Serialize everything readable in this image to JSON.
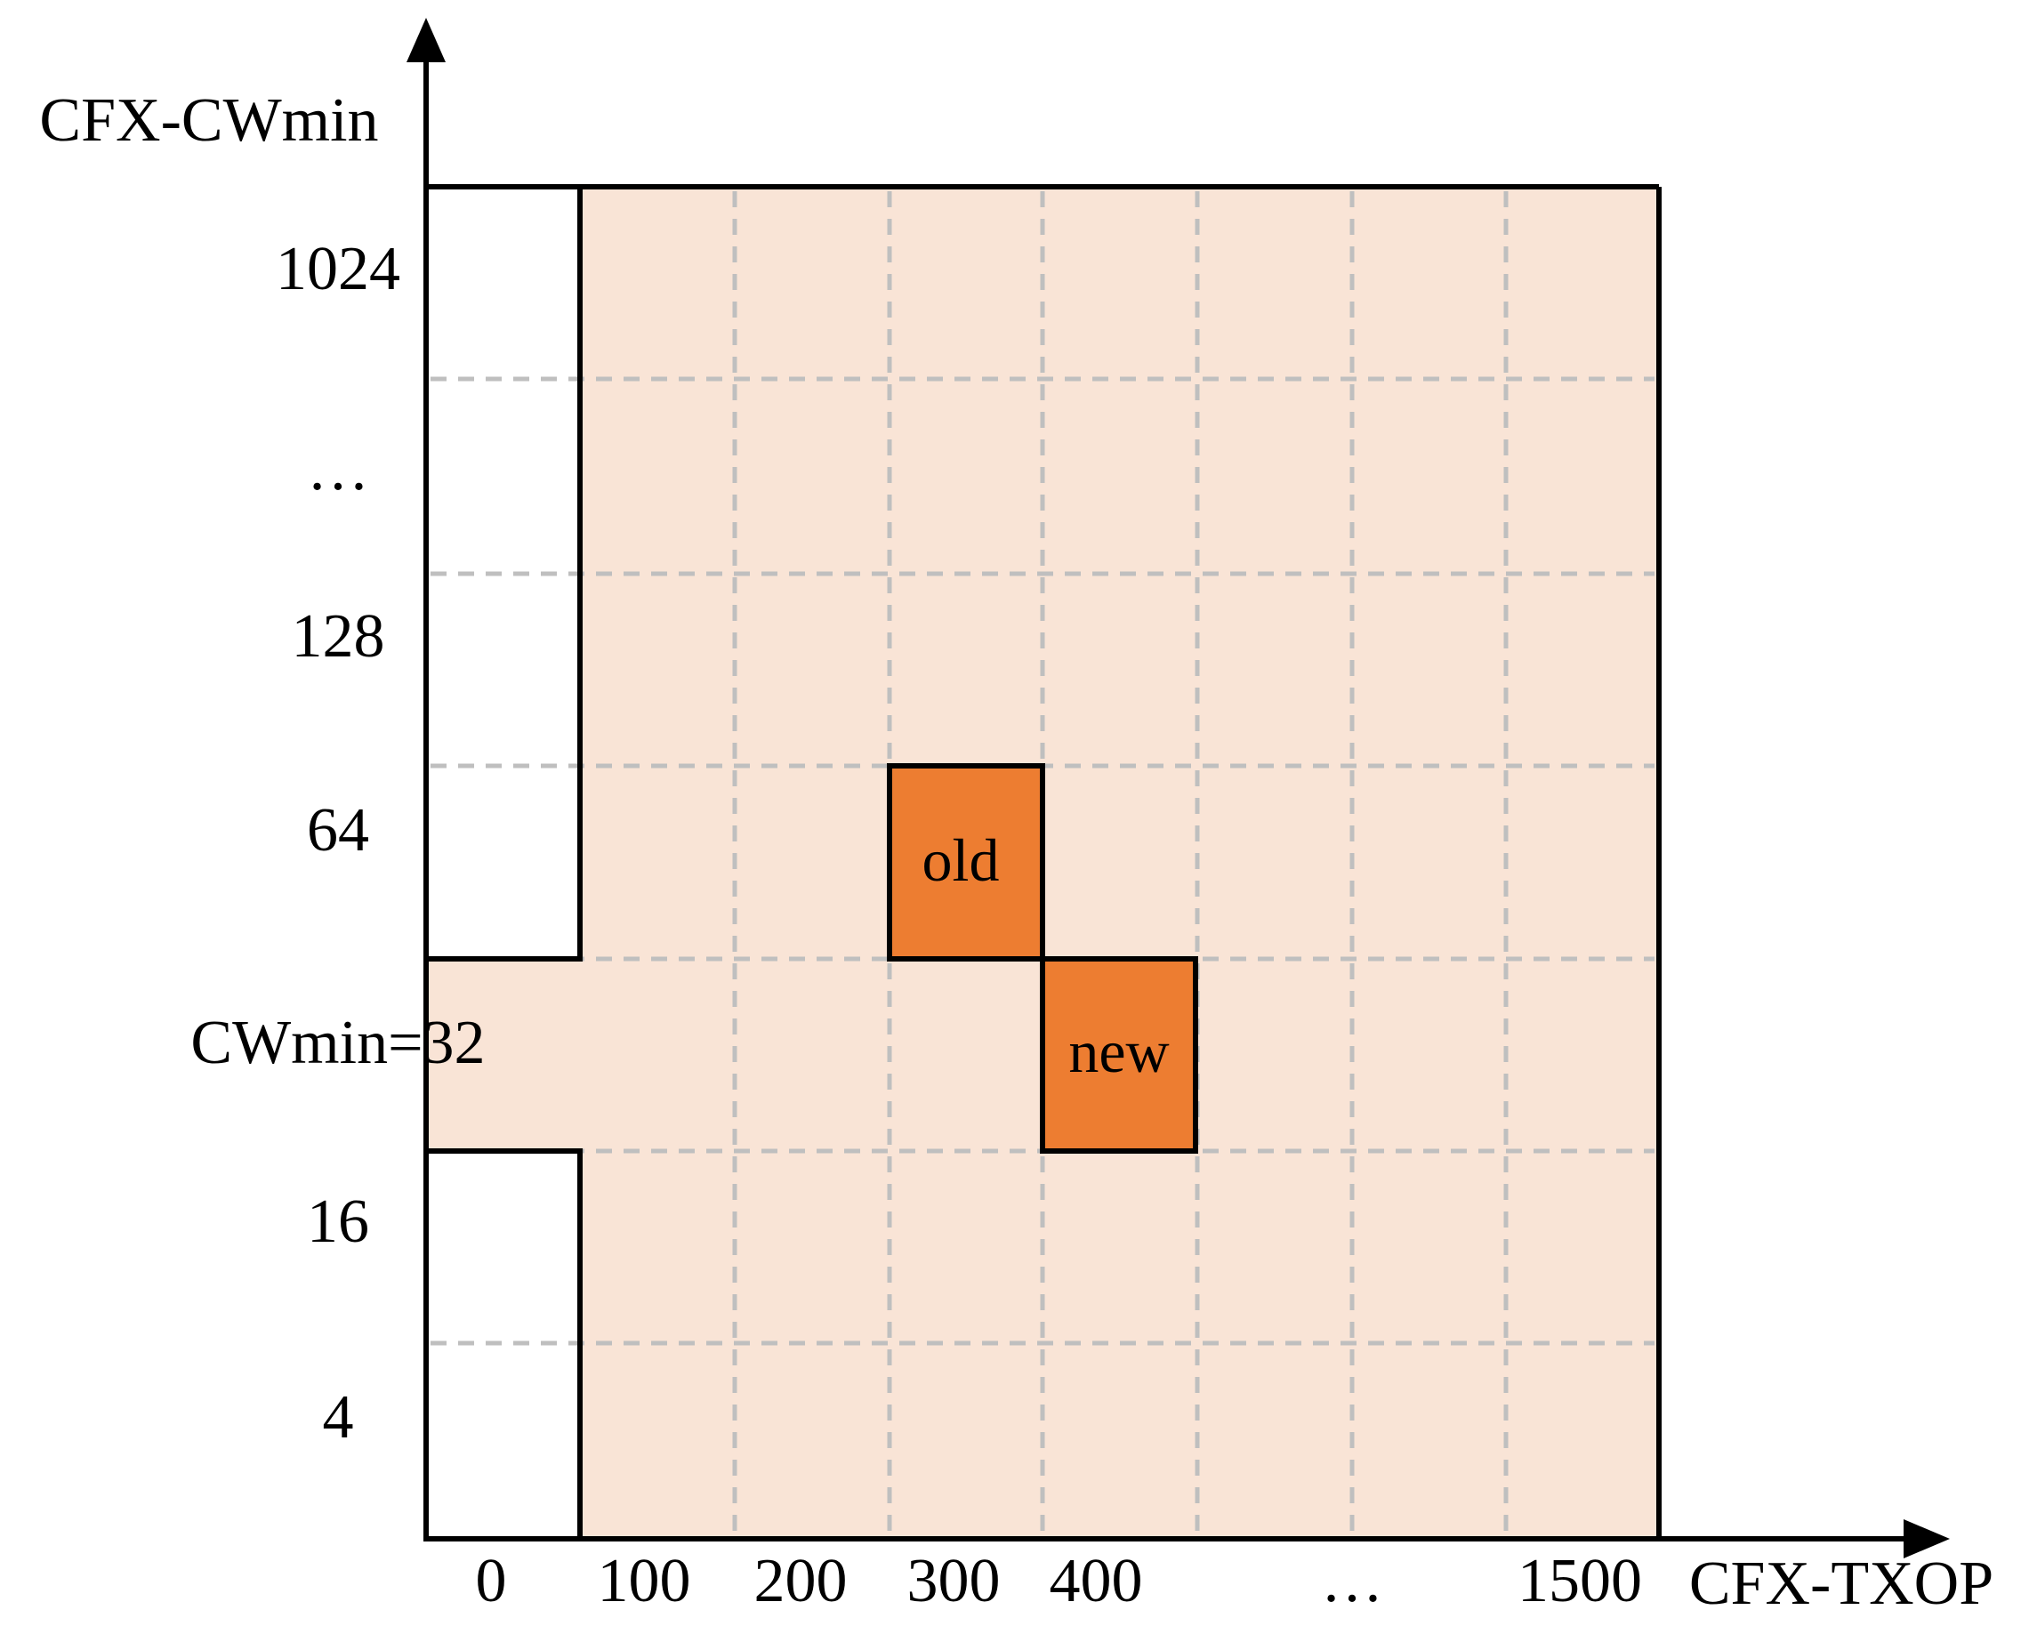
{
  "axes": {
    "y_title": "CFX-CWmin",
    "x_title": "CFX-TXOP"
  },
  "y_ticks": [
    "1024",
    "…",
    "128",
    "64",
    "CWmin=32",
    "16",
    "4"
  ],
  "x_ticks": [
    "0",
    "100",
    "200",
    "300",
    "400",
    "…",
    "1500"
  ],
  "cells": {
    "old": {
      "label": "old",
      "txop_index": 3,
      "cw_index": 3
    },
    "new": {
      "label": "new",
      "txop_index": 4,
      "cw_index": 4
    }
  },
  "colors": {
    "region_fill": "#f9e4d6",
    "cell_fill": "#ed7d31",
    "grid": "#bfbfbf",
    "line": "#000000"
  }
}
